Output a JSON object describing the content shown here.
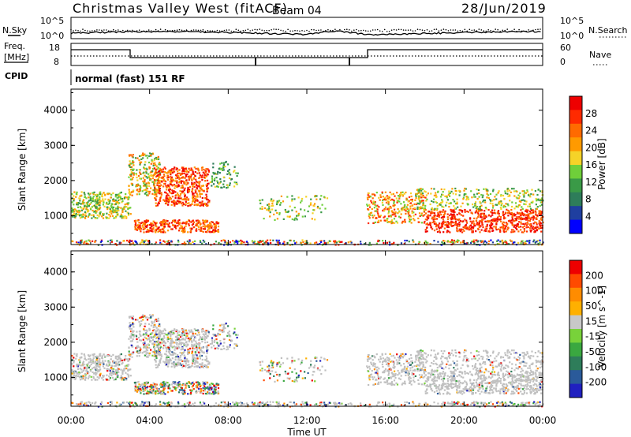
{
  "header": {
    "station": "Christmas Valley West (fitACF)",
    "beam": "Beam 04",
    "date": "28/Jun/2019"
  },
  "strip_panels": {
    "noise_left_label": "N.Sky",
    "noise_right_label": "N.Search",
    "noise_left_ticks": [
      "10^5",
      "10^0"
    ],
    "noise_right_ticks": [
      "10^5",
      "10^0"
    ],
    "freq_label_lines": [
      "Freq.",
      "[MHz]"
    ],
    "freq_ticks": [
      "18",
      "8"
    ],
    "nave_label": "Nave",
    "nave_ticks": [
      "60",
      "0"
    ],
    "cpid_label": "CPID",
    "cpid_value": "normal (fast) 151 RF"
  },
  "colors": {
    "power_scale": [
      "#0000ff",
      "#1f3fa0",
      "#2e7d5a",
      "#3a9a47",
      "#6fcf3a",
      "#f5d328",
      "#ff9a00",
      "#ff6a00",
      "#ff2a00",
      "#ee0000"
    ],
    "velocity_scale": [
      "#2020c0",
      "#2a5a9a",
      "#2e7d5a",
      "#3aa840",
      "#78d23a",
      "#c8c8c8",
      "#ffb000",
      "#ff8c00",
      "#ff4a00",
      "#ee0000"
    ],
    "gray_scatter": "#c0c0c0"
  },
  "chart_data": [
    {
      "type": "heatmap",
      "name": "power",
      "ylabel": "Slant Range [km]",
      "yticks": [
        "1000",
        "2000",
        "3000",
        "4000"
      ],
      "ylim": [
        180,
        4600
      ],
      "xlim_hours": [
        0,
        24
      ],
      "xticks": [
        "00:00",
        "04:00",
        "08:00",
        "12:00",
        "16:00",
        "20:00",
        "00:00"
      ],
      "colorbar_label": "Power [dB]",
      "colorbar_ticks": [
        "4",
        "8",
        "12",
        "16",
        "20",
        "24",
        "28"
      ],
      "colorbar_range": [
        0,
        30
      ]
    },
    {
      "type": "heatmap",
      "name": "velocity",
      "ylabel": "Slant Range [km]",
      "yticks": [
        "1000",
        "2000",
        "3000",
        "4000"
      ],
      "ylim": [
        180,
        4600
      ],
      "xlim_hours": [
        0,
        24
      ],
      "xticks": [
        "00:00",
        "04:00",
        "08:00",
        "12:00",
        "16:00",
        "20:00",
        "00:00"
      ],
      "xlabel": "Time UT",
      "colorbar_label": "Velocity [m s^-1]",
      "colorbar_ticks": [
        "200",
        "100",
        "50",
        "15",
        "-15",
        "-50",
        "-100",
        "-200"
      ]
    }
  ]
}
